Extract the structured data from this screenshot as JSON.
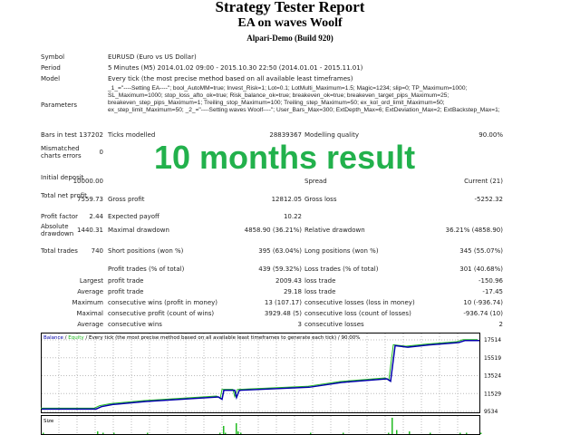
{
  "header": {
    "title": "Strategy Tester Report",
    "subtitle": "EA on waves Woolf",
    "build": "Alpari-Demo (Build 920)"
  },
  "info": {
    "symbol_label": "Symbol",
    "symbol": "EURUSD (Euro vs US Dollar)",
    "period_label": "Period",
    "period": "5 Minutes (M5) 2014.01.02 09:00 - 2015.10.30 22:50 (2014.01.01 - 2015.11.01)",
    "model_label": "Model",
    "model": "Every tick (the most precise method based on all available least timeframes)",
    "parameters_label": "Parameters",
    "parameters": "_1_=\"----Setting EA----\"; bool_AutoMM=true; Invest_Risk=1; Lot=0.1; LotMulti_Maximum=1.5; Magic=1234; slip=0; TP_Maximum=1000; SL_Maximum=1000; stop_loss_afto_ok=true; Risk_balance_ok=true; breakeven_ok=true; breakeven_target_pips_Maximum=25; breakeven_step_pips_Maximum=1; Treiling_stop_Maximum=100; Treiling_step_Maximum=50; ex_kol_ord_limit_Maximum=50; ex_step_limit_Maximum=50; _2_=\"----Setting waves Woolf----\"; User_Bars_Max=300; ExtDepth_Max=6; ExtDeviation_Max=2; ExtBackstep_Max=1;"
  },
  "overlay": "10 months result",
  "stats": [
    {
      "l1": "Bars in test",
      "v1": "137202",
      "l2": "Ticks modelled",
      "v2": "28839367",
      "l3": "Modelling quality",
      "v3": "90.00%"
    },
    {
      "l1": "Mismatched charts errors",
      "v1": "0"
    },
    {
      "l1": "Initial deposit",
      "v1": "10000.00",
      "l3": "Spread",
      "v3": "Current (21)"
    },
    {
      "l1": "Total net profit",
      "v1": "7559.73",
      "l2": "Gross profit",
      "v2": "12812.05",
      "l3": "Gross loss",
      "v3": "-5252.32"
    },
    {
      "l1": "Profit factor",
      "v1": "2.44",
      "l2": "Expected payoff",
      "v2": "10.22"
    },
    {
      "l1": "Absolute drawdown",
      "v1": "1440.31",
      "l2": "Maximal drawdown",
      "v2": "4858.90 (36.21%)",
      "l3": "Relative drawdown",
      "v3": "36.21% (4858.90)"
    },
    {
      "l1": "Total trades",
      "v1": "740",
      "l2": "Short positions (won %)",
      "v2": "395 (63.04%)",
      "l3": "Long positions (won %)",
      "v3": "345 (55.07%)"
    },
    {
      "l2": "Profit trades (% of total)",
      "v2": "439 (59.32%)",
      "l3": "Loss trades (% of total)",
      "v3": "301 (40.68%)"
    },
    {
      "v1": "Largest",
      "l2": "profit trade",
      "v2": "2009.43",
      "l3": "loss trade",
      "v3": "-150.96"
    },
    {
      "v1": "Average",
      "l2": "profit trade",
      "v2": "29.18",
      "l3": "loss trade",
      "v3": "-17.45"
    },
    {
      "v1": "Maximum",
      "l2": "consecutive wins (profit in money)",
      "v2": "13 (107.17)",
      "l3": "consecutive losses (loss in money)",
      "v3": "10 (-936.74)"
    },
    {
      "v1": "Maximal",
      "l2": "consecutive profit (count of wins)",
      "v2": "3929.48 (5)",
      "l3": "consecutive loss (count of losses)",
      "v3": "-936.74 (10)"
    },
    {
      "v1": "Average",
      "l2": "consecutive wins",
      "v2": "3",
      "l3": "consecutive losses",
      "v3": "2"
    }
  ],
  "chart_data": {
    "type": "line",
    "legend_balance": "Balance",
    "legend_sep": " / ",
    "legend_equity": "Equity",
    "legend_rest": " / Every tick (the most precise method based on all available least timeframes to generate each tick) / 90.00%",
    "size_label": "Size",
    "yticks": [
      "17514",
      "15519",
      "13524",
      "11529",
      "9534"
    ],
    "ylim": [
      9534,
      17514
    ],
    "grid": true,
    "colors": {
      "balance": "#0000aa",
      "equity": "#22bb22"
    },
    "balance": [
      9803,
      9800,
      10073,
      10308,
      10645,
      11150,
      10880,
      11890,
      11890,
      11083,
      11890,
      12230,
      12770,
      13170,
      12900,
      16870,
      16700,
      16940,
      17210,
      17440,
      17440
    ],
    "size_bars": [
      1,
      2,
      1,
      1,
      1,
      1,
      6,
      1,
      8,
      2,
      1,
      1,
      1,
      1,
      12,
      3,
      2,
      1,
      1,
      1,
      1
    ]
  }
}
